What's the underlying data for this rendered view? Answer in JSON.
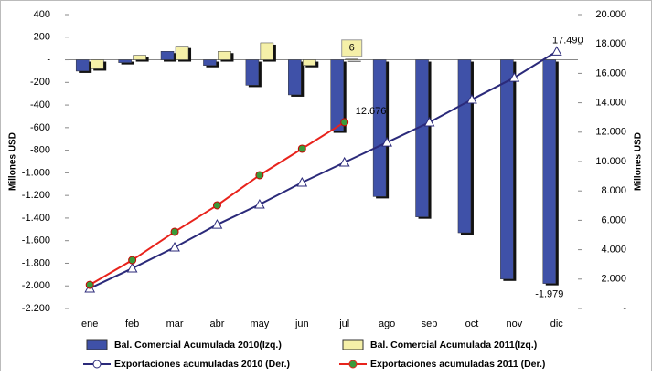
{
  "chart_data": {
    "type": "bar-line",
    "categories": [
      "ene",
      "feb",
      "mar",
      "abr",
      "may",
      "jun",
      "jul",
      "ago",
      "sep",
      "oct",
      "nov",
      "dic"
    ],
    "ylabel": "Millones USD",
    "y2label": "Millones USD",
    "ylim": [
      -2200,
      400
    ],
    "yticks": [
      400,
      200,
      {
        "value": 0,
        "label": "-"
      },
      -200,
      -400,
      -600,
      -800,
      {
        "value": -1000,
        "label": "-1.000"
      },
      {
        "value": -1200,
        "label": "-1.200"
      },
      {
        "value": -1400,
        "label": "-1.400"
      },
      {
        "value": -1600,
        "label": "-1.600"
      },
      {
        "value": -1800,
        "label": "-1.800"
      },
      {
        "value": -2000,
        "label": "-2.000"
      },
      {
        "value": -2200,
        "label": "-2.200"
      }
    ],
    "y2lim": [
      0,
      20000
    ],
    "y2ticks": [
      {
        "value": 0,
        "label": "-"
      },
      {
        "value": 2000,
        "label": "2.000"
      },
      {
        "value": 4000,
        "label": "4.000"
      },
      {
        "value": 6000,
        "label": "6.000"
      },
      {
        "value": 8000,
        "label": "8.000"
      },
      {
        "value": 10000,
        "label": "10.000"
      },
      {
        "value": 12000,
        "label": "12.000"
      },
      {
        "value": 14000,
        "label": "14.000"
      },
      {
        "value": 16000,
        "label": "16.000"
      },
      {
        "value": 18000,
        "label": "18.000"
      },
      {
        "value": 20000,
        "label": "20.000"
      }
    ],
    "series": [
      {
        "name": "Bal. Comercial Acumulada 2010(Izq.)",
        "kind": "bar",
        "color": "#3f51a8",
        "values": [
          -100,
          -25,
          75,
          -50,
          -225,
          -310,
          -630,
          -1210,
          -1390,
          -1530,
          -1940,
          -1979
        ],
        "value_labels": [
          null,
          null,
          null,
          null,
          null,
          null,
          null,
          null,
          null,
          null,
          null,
          "-1.979"
        ]
      },
      {
        "name": "Bal. Comercial Acumulada 2011(Izq.)",
        "kind": "bar",
        "color": "#f5f0a8",
        "values": [
          -80,
          40,
          120,
          75,
          150,
          -50,
          6,
          null,
          null,
          null,
          null,
          null
        ],
        "value_labels": [
          null,
          null,
          null,
          null,
          null,
          null,
          "6",
          null,
          null,
          null,
          null,
          null
        ]
      },
      {
        "name": "Exportaciones acumuladas 2010 (Der.)",
        "kind": "line",
        "axis": "y2",
        "color": "#2b2a7a",
        "values": [
          1370,
          2730,
          4160,
          5710,
          7080,
          8570,
          9940,
          11300,
          12670,
          14220,
          15710,
          17490
        ],
        "value_labels": [
          null,
          null,
          null,
          null,
          null,
          null,
          null,
          null,
          null,
          null,
          null,
          "17.490"
        ]
      },
      {
        "name": "Exportaciones acumuladas 2011 (Der.)",
        "kind": "line",
        "axis": "y2",
        "color": "#e8231c",
        "values": [
          1610,
          3290,
          5220,
          7020,
          9070,
          10870,
          12676,
          null,
          null,
          null,
          null,
          null
        ],
        "value_labels": [
          null,
          null,
          null,
          null,
          null,
          null,
          "12.676",
          null,
          null,
          null,
          null,
          null
        ]
      }
    ]
  }
}
